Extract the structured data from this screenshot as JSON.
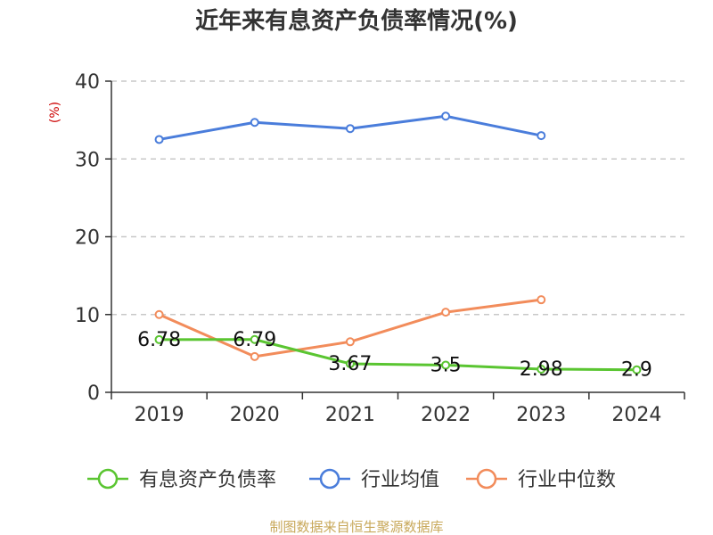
{
  "title": "近年来有息资产负债率情况(%)",
  "unit_label": "(%)",
  "source": "制图数据来自恒生聚源数据库",
  "chart_data": {
    "type": "line",
    "title": "近年来有息资产负债率情况(%)",
    "ylabel": "(%)",
    "xlabel": "",
    "categories": [
      "2019",
      "2020",
      "2021",
      "2022",
      "2023",
      "2024"
    ],
    "ylim": [
      0,
      40
    ],
    "yticks": [
      0,
      10,
      20,
      30,
      40
    ],
    "grid": "horizontal-dashed",
    "legend_position": "bottom",
    "series": [
      {
        "name": "有息资产负债率",
        "color": "#5ac531",
        "values": [
          6.78,
          6.79,
          3.67,
          3.5,
          2.98,
          2.9
        ],
        "labels": [
          "6.78",
          "6.79",
          "3.67",
          "3.5",
          "2.98",
          "2.9"
        ]
      },
      {
        "name": "行业均值",
        "color": "#4a7ddb",
        "values": [
          32.5,
          34.7,
          33.9,
          35.5,
          33.0,
          null
        ]
      },
      {
        "name": "行业中位数",
        "color": "#f28c5b",
        "values": [
          10.0,
          4.6,
          6.5,
          10.3,
          11.9,
          null
        ]
      }
    ]
  }
}
